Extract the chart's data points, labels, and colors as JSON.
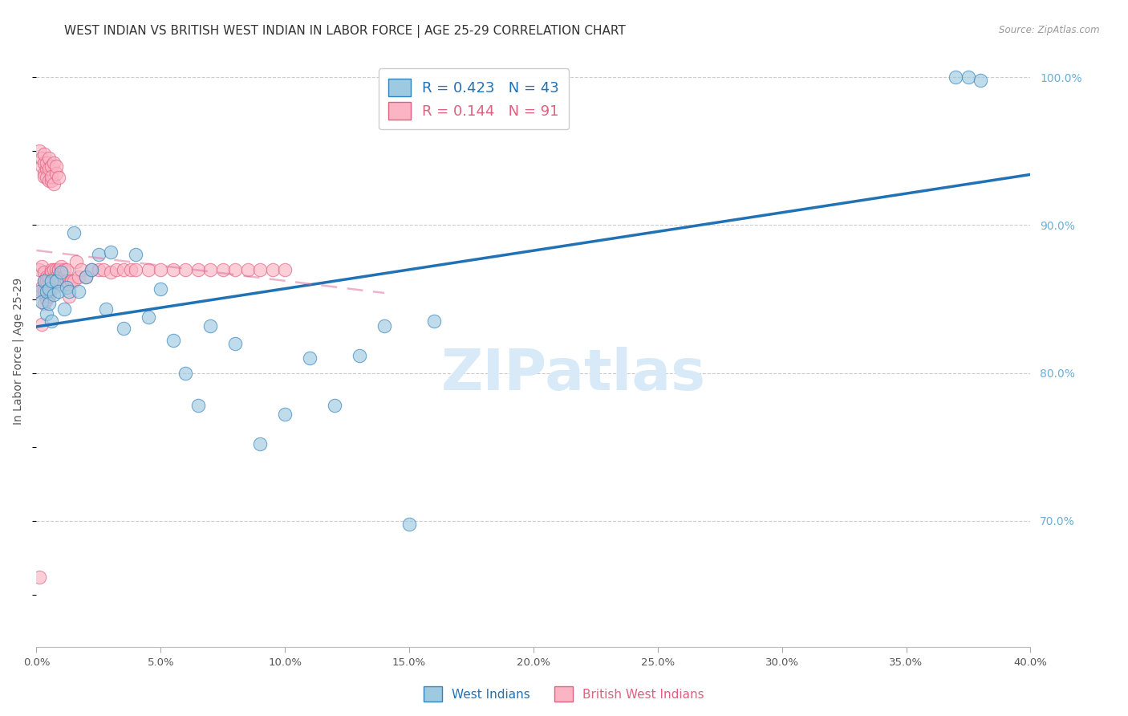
{
  "title": "WEST INDIAN VS BRITISH WEST INDIAN IN LABOR FORCE | AGE 25-29 CORRELATION CHART",
  "source": "Source: ZipAtlas.com",
  "ylabel": "In Labor Force | Age 25-29",
  "xlim": [
    0.0,
    0.4
  ],
  "ylim": [
    0.615,
    1.015
  ],
  "xticks": [
    0.0,
    0.05,
    0.1,
    0.15,
    0.2,
    0.25,
    0.3,
    0.35,
    0.4
  ],
  "xticklabels": [
    "0.0%",
    "5.0%",
    "10.0%",
    "15.0%",
    "20.0%",
    "25.0%",
    "30.0%",
    "35.0%",
    "40.0%"
  ],
  "right_yticks": [
    0.7,
    0.8,
    0.9,
    1.0
  ],
  "right_yticklabels": [
    "70.0%",
    "80.0%",
    "90.0%",
    "100.0%"
  ],
  "legend_blue_label": "R = 0.423   N = 43",
  "legend_pink_label": "R = 0.144   N = 91",
  "legend_blue_series": "West Indians",
  "legend_pink_series": "British West Indians",
  "blue_fill": "#9ecae1",
  "pink_fill": "#fbb4c3",
  "blue_edge": "#3182bd",
  "pink_edge": "#e06080",
  "blue_line": "#2171b5",
  "pink_line": "#de77a0",
  "pink_line_dash": "dashed",
  "grid_color": "#cccccc",
  "title_color": "#333333",
  "source_color": "#999999",
  "right_tick_color": "#6baed6",
  "watermark_color": "#d8eaf8",
  "blue_x": [
    0.001,
    0.002,
    0.003,
    0.004,
    0.004,
    0.005,
    0.005,
    0.006,
    0.006,
    0.007,
    0.008,
    0.009,
    0.01,
    0.011,
    0.012,
    0.013,
    0.015,
    0.017,
    0.02,
    0.022,
    0.025,
    0.028,
    0.03,
    0.035,
    0.04,
    0.045,
    0.05,
    0.055,
    0.06,
    0.065,
    0.07,
    0.08,
    0.09,
    0.1,
    0.11,
    0.12,
    0.13,
    0.14,
    0.15,
    0.16,
    0.37,
    0.375,
    0.38
  ],
  "blue_y": [
    0.855,
    0.848,
    0.862,
    0.855,
    0.84,
    0.857,
    0.847,
    0.862,
    0.835,
    0.853,
    0.862,
    0.855,
    0.868,
    0.843,
    0.858,
    0.855,
    0.895,
    0.855,
    0.865,
    0.87,
    0.88,
    0.843,
    0.882,
    0.83,
    0.88,
    0.838,
    0.857,
    0.822,
    0.8,
    0.778,
    0.832,
    0.82,
    0.752,
    0.772,
    0.81,
    0.778,
    0.812,
    0.832,
    0.698,
    0.835,
    1.0,
    1.0,
    0.998
  ],
  "pink_x": [
    0.001,
    0.001,
    0.002,
    0.002,
    0.002,
    0.002,
    0.003,
    0.003,
    0.003,
    0.003,
    0.003,
    0.004,
    0.004,
    0.004,
    0.004,
    0.004,
    0.005,
    0.005,
    0.005,
    0.005,
    0.005,
    0.006,
    0.006,
    0.006,
    0.006,
    0.007,
    0.007,
    0.007,
    0.007,
    0.008,
    0.008,
    0.008,
    0.009,
    0.009,
    0.009,
    0.01,
    0.01,
    0.01,
    0.011,
    0.011,
    0.012,
    0.012,
    0.013,
    0.013,
    0.014,
    0.015,
    0.016,
    0.017,
    0.018,
    0.02,
    0.022,
    0.025,
    0.027,
    0.03,
    0.032,
    0.035,
    0.038,
    0.04,
    0.045,
    0.05,
    0.055,
    0.06,
    0.065,
    0.07,
    0.075,
    0.08,
    0.085,
    0.09,
    0.095,
    0.1,
    0.001,
    0.002,
    0.002,
    0.003,
    0.003,
    0.003,
    0.003,
    0.004,
    0.004,
    0.004,
    0.005,
    0.005,
    0.005,
    0.006,
    0.006,
    0.006,
    0.007,
    0.007,
    0.008,
    0.008,
    0.009
  ],
  "pink_y": [
    0.662,
    0.87,
    0.855,
    0.833,
    0.872,
    0.858,
    0.868,
    0.855,
    0.847,
    0.855,
    0.862,
    0.862,
    0.853,
    0.865,
    0.85,
    0.862,
    0.857,
    0.862,
    0.852,
    0.857,
    0.865,
    0.87,
    0.862,
    0.857,
    0.868,
    0.865,
    0.87,
    0.858,
    0.862,
    0.87,
    0.865,
    0.862,
    0.87,
    0.865,
    0.87,
    0.87,
    0.862,
    0.872,
    0.87,
    0.865,
    0.87,
    0.862,
    0.86,
    0.852,
    0.862,
    0.862,
    0.875,
    0.865,
    0.87,
    0.865,
    0.87,
    0.87,
    0.87,
    0.868,
    0.87,
    0.87,
    0.87,
    0.87,
    0.87,
    0.87,
    0.87,
    0.87,
    0.87,
    0.87,
    0.87,
    0.87,
    0.87,
    0.87,
    0.87,
    0.87,
    0.95,
    0.94,
    0.945,
    0.942,
    0.935,
    0.948,
    0.933,
    0.938,
    0.942,
    0.932,
    0.93,
    0.938,
    0.945,
    0.93,
    0.94,
    0.933,
    0.942,
    0.928,
    0.935,
    0.94,
    0.932
  ]
}
